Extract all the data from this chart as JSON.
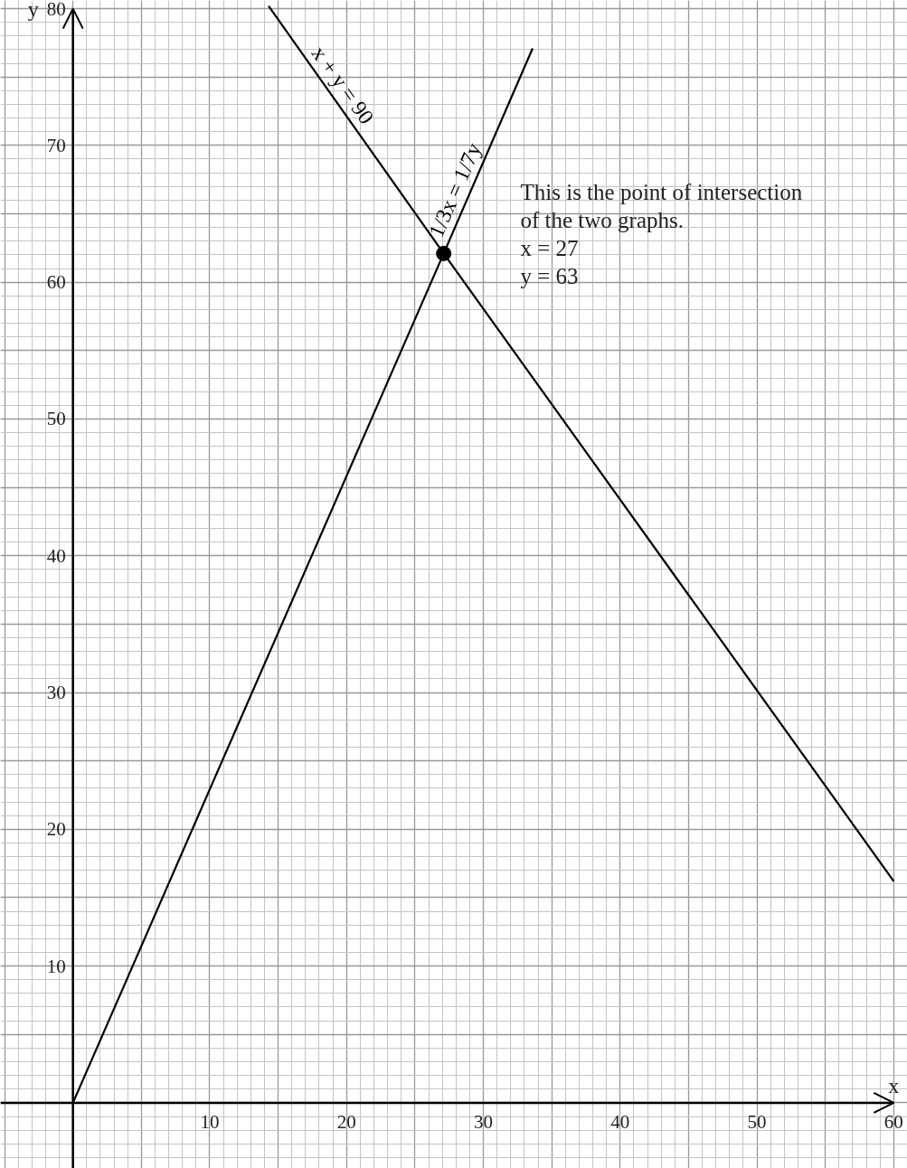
{
  "chart_data": {
    "type": "line",
    "xlabel": "x",
    "ylabel": "y",
    "xlim": [
      -5.3,
      61
    ],
    "ylim": [
      -4.8,
      80.6
    ],
    "xticks": [
      10,
      20,
      30,
      40,
      50,
      60
    ],
    "yticks": [
      10,
      20,
      30,
      40,
      50,
      60,
      70,
      80
    ],
    "grid": true,
    "line_style": "solid",
    "series": [
      {
        "name": "x + y = 90",
        "color": "#000000",
        "x": [
          14.3,
          27.1,
          60
        ],
        "values": [
          80.2,
          62.1,
          16.2
        ]
      },
      {
        "name": "1/3x = 1/7y",
        "color": "#000000",
        "x": [
          0,
          27.1,
          33.6
        ],
        "values": [
          0,
          62.1,
          77.1
        ]
      },
      {
        "type": "scatter",
        "marker": "circle",
        "color": "#000000",
        "x": [
          27.1
        ],
        "values": [
          62.1
        ]
      }
    ],
    "annotations": [
      "This is the point of intersection\nof the two graphs.\n x = 27\ny = 63"
    ]
  }
}
